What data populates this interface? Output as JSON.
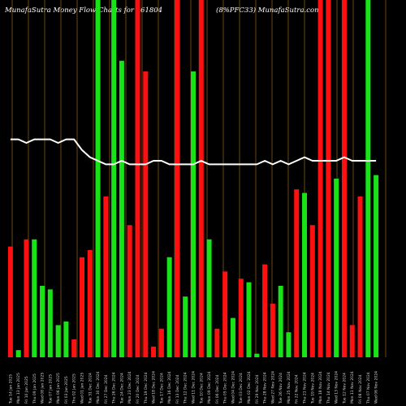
{
  "chart_data": {
    "type": "bar",
    "title_left": "MunafaSutra  Money Flow  Charts for 961804",
    "title_right": "(8%PFC33) MunafaSutra.com",
    "ylim": [
      0,
      100
    ],
    "grid": "vertical",
    "categories": [
      "Tue 14 Jan 2025",
      "Mon 13 Jan 2025",
      "Fri 10 Jan 2025",
      "Thu 09 Jan 2025",
      "Wed 08 Jan 2025",
      "Tue 07 Jan 2025",
      "Mon 06 Jan 2025",
      "Fri 03 Jan 2025",
      "Thu 02 Jan 2025",
      "Wed 01 Jan 2025",
      "Tue 31 Dec 2024",
      "Mon 30 Dec 2024",
      "Fri 27 Dec 2024",
      "Thu 26 Dec 2024",
      "Tue 24 Dec 2024",
      "Mon 23 Dec 2024",
      "Fri 20 Dec 2024",
      "Thu 19 Dec 2024",
      "Wed 18 Dec 2024",
      "Tue 17 Dec 2024",
      "Mon 16 Dec 2024",
      "Fri 13 Dec 2024",
      "Thu 12 Dec 2024",
      "Wed 11 Dec 2024",
      "Tue 10 Dec 2024",
      "Mon 09 Dec 2024",
      "Fri 06 Dec 2024",
      "Thu 05 Dec 2024",
      "Wed 04 Dec 2024",
      "Tue 03 Dec 2024",
      "Mon 02 Dec 2024",
      "Fri 29 Nov 2024",
      "Thu 28 Nov 2024",
      "Wed 27 Nov 2024",
      "Tue 26 Nov 2024",
      "Mon 25 Nov 2024",
      "Fri 22 Nov 2024",
      "Thu 21 Nov 2024",
      "Tue 19 Nov 2024",
      "Mon 18 Nov 2024",
      "Thu 14 Nov 2024",
      "Wed 13 Nov 2024",
      "Tue 12 Nov 2024",
      "Mon 11 Nov 2024",
      "Fri 08 Nov 2024",
      "Thu 07 Nov 2024",
      "Wed 06 Nov 2024"
    ],
    "bar_colors": [
      "red",
      "green",
      "red",
      "green",
      "green",
      "green",
      "green",
      "green",
      "red",
      "red",
      "red",
      "green",
      "red",
      "green",
      "green",
      "red",
      "red",
      "red",
      "red",
      "red",
      "green",
      "red",
      "green",
      "green",
      "red",
      "green",
      "red",
      "red",
      "green",
      "red",
      "green",
      "green",
      "red",
      "red",
      "green",
      "green",
      "red",
      "green",
      "red",
      "red",
      "red",
      "green",
      "red",
      "red",
      "red",
      "green",
      "green"
    ],
    "values": [
      31,
      2,
      33,
      33,
      20,
      19,
      9,
      10,
      5,
      28,
      30,
      100,
      45,
      100,
      83,
      37,
      100,
      80,
      3,
      8,
      28,
      100,
      17,
      80,
      100,
      33,
      8,
      24,
      11,
      22,
      21,
      1,
      26,
      15,
      20,
      7,
      47,
      46,
      37,
      100,
      100,
      50,
      100,
      9,
      45,
      100,
      51
    ],
    "line_values": [
      61,
      61,
      60,
      61,
      61,
      61,
      60,
      61,
      61,
      58,
      56,
      55,
      54,
      54,
      55,
      54,
      54,
      54,
      55,
      55,
      54,
      54,
      54,
      54,
      55,
      54,
      54,
      54,
      54,
      54,
      54,
      54,
      55,
      54,
      55,
      54,
      55,
      56,
      55,
      55,
      55,
      55,
      56,
      55,
      55,
      55,
      55
    ],
    "colors": {
      "up": "#17e317",
      "down": "#ff1010",
      "grid": "#b57a20",
      "line": "#ffffff",
      "background": "#000000"
    }
  }
}
